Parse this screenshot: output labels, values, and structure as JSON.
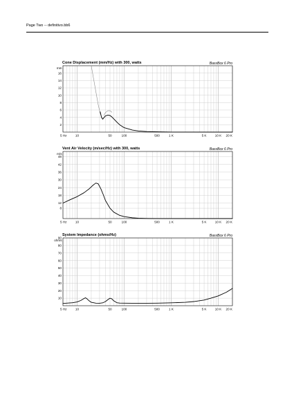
{
  "page": {
    "header": "Page Two -- definitivo.bb6"
  },
  "chart_data": [
    {
      "type": "line",
      "title": "Cone Displacement (mm/Hz) with 300, watts",
      "brand": "BassBox 6 Pro",
      "ylabel": "mm",
      "xscale": "log",
      "xlim": [
        5,
        20000
      ],
      "ylim": [
        0,
        18
      ],
      "yticks": [
        2,
        4,
        6,
        8,
        10,
        12,
        14,
        16
      ],
      "xtick_labels": [
        {
          "x": 5,
          "label": "5 Hz"
        },
        {
          "x": 10,
          "label": "10"
        },
        {
          "x": 50,
          "label": "50"
        },
        {
          "x": 100,
          "label": "100"
        },
        {
          "x": 500,
          "label": "500"
        },
        {
          "x": 1000,
          "label": "1 K"
        },
        {
          "x": 5000,
          "label": "5 K"
        },
        {
          "x": 10000,
          "label": "10 K"
        },
        {
          "x": 20000,
          "label": "20 K"
        }
      ],
      "grid": true,
      "series": [
        {
          "style": "gray",
          "x": [
            20,
            22,
            25,
            28,
            31,
            34
          ],
          "y": [
            18,
            15,
            11,
            7.5,
            5,
            3.8
          ]
        },
        {
          "style": "gray",
          "x": [
            37,
            40,
            45,
            50,
            55
          ],
          "y": [
            4.5,
            5.3,
            5.8,
            5.8,
            5.4
          ]
        },
        {
          "style": "black",
          "x": [
            31,
            33,
            35,
            37,
            40,
            45,
            50,
            55,
            60,
            70,
            80,
            100,
            150,
            200,
            300,
            500,
            1000,
            2000,
            20000
          ],
          "y": [
            5.5,
            4.0,
            3.5,
            3.9,
            4.4,
            4.6,
            4.5,
            4.1,
            3.6,
            2.7,
            2.0,
            1.2,
            0.55,
            0.32,
            0.15,
            0.07,
            0.02,
            0.01,
            0
          ]
        }
      ]
    },
    {
      "type": "line",
      "title": "Vent Air Velocity (m/sec/Hz) with 300, watts",
      "brand": "BassBox 6 Pro",
      "ylabel": "m/s",
      "xscale": "log",
      "xlim": [
        5,
        20000
      ],
      "ylim": [
        0,
        52
      ],
      "yticks": [
        8,
        12,
        18,
        24,
        30,
        36,
        42,
        48
      ],
      "xtick_labels": [
        {
          "x": 5,
          "label": "5 Hz"
        },
        {
          "x": 10,
          "label": "10"
        },
        {
          "x": 50,
          "label": "50"
        },
        {
          "x": 100,
          "label": "100"
        },
        {
          "x": 500,
          "label": "500"
        },
        {
          "x": 1000,
          "label": "1 K"
        },
        {
          "x": 5000,
          "label": "5 K"
        },
        {
          "x": 10000,
          "label": "10 K"
        },
        {
          "x": 20000,
          "label": "20 K"
        }
      ],
      "grid": true,
      "series": [
        {
          "style": "black",
          "x": [
            5,
            7,
            10,
            14,
            18,
            22,
            25,
            28,
            32,
            36,
            40,
            50,
            60,
            80,
            100,
            150,
            200,
            300,
            500,
            20000
          ],
          "y": [
            12,
            14.5,
            17,
            20,
            23,
            26,
            27.5,
            27,
            23,
            18.5,
            14,
            8,
            5,
            2.5,
            1.5,
            0.6,
            0.3,
            0.1,
            0,
            0
          ]
        }
      ]
    },
    {
      "type": "line",
      "title": "System Impedance (ohms/Hz)",
      "brand": "BassBox 6 Pro",
      "ylabel": "ohms",
      "xscale": "log",
      "xlim": [
        5,
        20000
      ],
      "ylim": [
        0,
        90
      ],
      "yticks": [
        10,
        20,
        30,
        40,
        50,
        60,
        70,
        80,
        90
      ],
      "xtick_labels": [
        {
          "x": 5,
          "label": "5 Hz"
        },
        {
          "x": 10,
          "label": "10"
        },
        {
          "x": 50,
          "label": "50"
        },
        {
          "x": 100,
          "label": "100"
        },
        {
          "x": 500,
          "label": "500"
        },
        {
          "x": 1000,
          "label": "1 K"
        },
        {
          "x": 5000,
          "label": "5 K"
        },
        {
          "x": 10000,
          "label": "10 K"
        },
        {
          "x": 20000,
          "label": "20 K"
        }
      ],
      "grid": true,
      "series": [
        {
          "style": "black",
          "x": [
            5,
            8,
            10,
            12,
            14,
            15,
            16,
            18,
            20,
            25,
            30,
            35,
            40,
            45,
            50,
            55,
            60,
            70,
            80,
            100,
            150,
            200,
            300,
            500,
            1000,
            2000,
            3000,
            5000,
            7000,
            10000,
            15000,
            20000
          ],
          "y": [
            3,
            4,
            5,
            7,
            9.5,
            10.5,
            9.5,
            6.5,
            4.5,
            3.4,
            3.3,
            3.8,
            5.5,
            8,
            10,
            9,
            6.5,
            4,
            3.5,
            3.4,
            3.3,
            3.3,
            3.3,
            3.4,
            3.8,
            4.5,
            5.5,
            7.5,
            10,
            13,
            18,
            23
          ]
        }
      ]
    }
  ]
}
